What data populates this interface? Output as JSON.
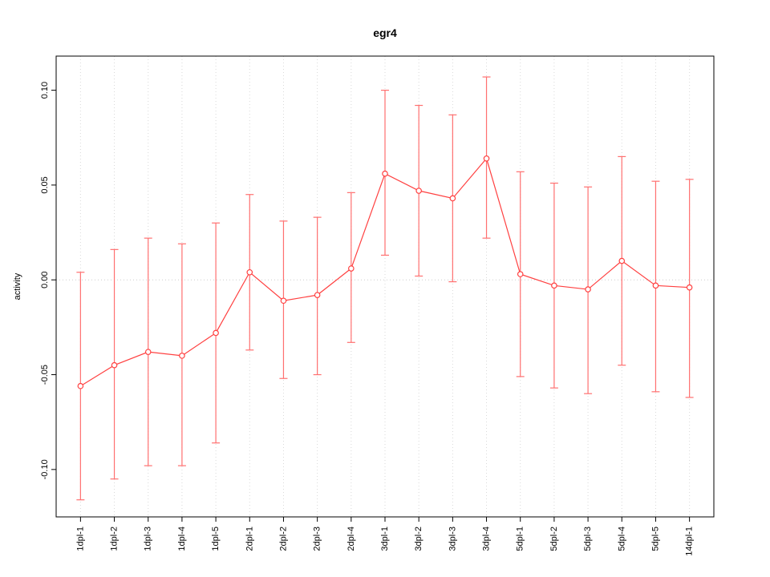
{
  "page": {
    "background": "#ffffff"
  },
  "chart_data": {
    "type": "line",
    "title": "egr4",
    "xlabel": "",
    "ylabel": "activity",
    "ylim": [
      -0.125,
      0.118
    ],
    "yticks": [
      -0.1,
      -0.05,
      0.0,
      0.05,
      0.1
    ],
    "ytick_labels": [
      "-0.10",
      "-0.05",
      "0.00",
      "0.05",
      "0.10"
    ],
    "grid": true,
    "zero_line": true,
    "legend": "none",
    "categories": [
      "1dpl-1",
      "1dpl-2",
      "1dpl-3",
      "1dpl-4",
      "1dpl-5",
      "2dpl-1",
      "2dpl-2",
      "2dpl-3",
      "2dpl-4",
      "3dpl-1",
      "3dpl-2",
      "3dpl-3",
      "3dpl-4",
      "5dpl-1",
      "5dpl-2",
      "5dpl-3",
      "5dpl-4",
      "5dpl-5",
      "14dpl-1"
    ],
    "series": [
      {
        "name": "egr4 activity",
        "marker": "open-circle",
        "values": [
          -0.056,
          -0.045,
          -0.038,
          -0.04,
          -0.028,
          0.004,
          -0.011,
          -0.008,
          0.006,
          0.056,
          0.047,
          0.043,
          0.064,
          0.003,
          -0.003,
          -0.005,
          0.01,
          -0.003,
          -0.004
        ],
        "upper": [
          0.004,
          0.016,
          0.022,
          0.019,
          0.03,
          0.045,
          0.031,
          0.033,
          0.046,
          0.1,
          0.092,
          0.087,
          0.107,
          0.057,
          0.051,
          0.049,
          0.065,
          0.052,
          0.053
        ],
        "lower": [
          -0.116,
          -0.105,
          -0.098,
          -0.098,
          -0.086,
          -0.037,
          -0.052,
          -0.05,
          -0.033,
          0.013,
          0.002,
          -0.001,
          0.022,
          -0.051,
          -0.057,
          -0.06,
          -0.045,
          -0.059,
          -0.062
        ]
      }
    ],
    "colors": {
      "series": "#ff4040",
      "error_bars": "#ff7070",
      "grid": "#d9d9d9",
      "zero_line": "#cccccc",
      "axis": "#000000",
      "box": "#000000"
    }
  }
}
